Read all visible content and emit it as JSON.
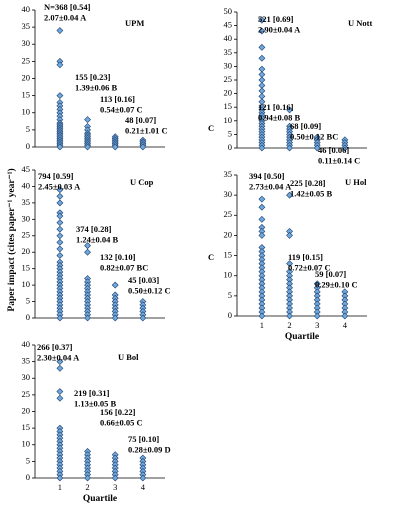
{
  "y_axis_label": "Paper impact (cites paper⁻¹ year⁻¹)",
  "chart_data": [
    {
      "type": "scatter",
      "title": "UPM",
      "x": [
        1,
        2,
        3,
        4
      ],
      "xlim": [
        0.1,
        4.8
      ],
      "ylim": [
        0,
        40
      ],
      "yticks": [
        0,
        5,
        10,
        15,
        20,
        25,
        30,
        35,
        40
      ],
      "values": [
        [
          34,
          25,
          24,
          15,
          13,
          12,
          11,
          10,
          9,
          8,
          7,
          6.5,
          6,
          5.5,
          5,
          4.5,
          4,
          3.5,
          3,
          2.5,
          2,
          1.5,
          1,
          0.5,
          0
        ],
        [
          8,
          6,
          5,
          4,
          3.5,
          3,
          2.5,
          2,
          1.5,
          1,
          0.5,
          0
        ],
        [
          3,
          2.5,
          2,
          1.5,
          1,
          0.5,
          0
        ],
        [
          2,
          1.5,
          1,
          0.5,
          0
        ]
      ],
      "annotations": [
        [
          "N=368 [0.54]",
          "2.07±0.04 A"
        ],
        [
          "155 [0.23]",
          "1.39±0.06 B"
        ],
        [
          "113 [0.16]",
          "0.54±0.07 C"
        ],
        [
          "48 [0.07]",
          "0.21±1.01 C"
        ]
      ]
    },
    {
      "type": "scatter",
      "title": "U Nott",
      "x": [
        1,
        2,
        3,
        4
      ],
      "xlim": [
        0.1,
        4.8
      ],
      "ylim": [
        0,
        50
      ],
      "yticks": [
        0,
        5,
        10,
        15,
        20,
        25,
        30,
        35,
        40,
        45,
        50
      ],
      "side_label": "C",
      "values": [
        [
          47,
          43,
          37,
          33,
          29,
          27,
          25,
          23,
          21,
          19,
          17,
          15,
          14,
          13,
          12,
          11,
          10,
          9,
          8,
          7,
          6,
          5,
          4,
          3,
          2,
          1,
          0
        ],
        [
          14,
          8,
          7,
          6,
          5,
          4,
          3,
          2,
          1,
          0
        ],
        [
          4,
          3,
          2,
          1,
          0
        ],
        [
          3,
          2,
          1,
          0
        ]
      ],
      "annotations": [
        [
          "521 [0.69]",
          "2.90±0.04 A"
        ],
        [
          "121 [0.16]",
          "0.94±0.08 B"
        ],
        [
          "68 [0.09]",
          "0.50±0.12 BC"
        ],
        [
          "46 [0.06]",
          "0.11±0.14 C"
        ]
      ]
    },
    {
      "type": "scatter",
      "title": "U Cop",
      "x": [
        1,
        2,
        3,
        4
      ],
      "xlim": [
        0.1,
        4.8
      ],
      "ylim": [
        0,
        45
      ],
      "yticks": [
        0,
        5,
        10,
        15,
        20,
        25,
        30,
        35,
        40,
        45
      ],
      "values": [
        [
          39,
          37,
          35,
          32,
          31,
          29,
          27,
          25,
          23,
          21,
          19,
          17,
          16,
          15,
          14,
          13,
          12,
          11,
          10,
          9,
          8,
          7,
          6,
          5,
          4,
          3,
          2,
          1,
          0
        ],
        [
          22,
          20,
          12,
          11,
          10,
          9,
          8,
          7,
          6,
          5,
          4,
          3,
          2,
          1,
          0
        ],
        [
          10,
          7,
          6,
          5,
          4,
          3,
          2,
          1,
          0
        ],
        [
          5,
          4,
          3,
          2,
          1,
          0
        ]
      ],
      "annotations": [
        [
          "794 [0.59]",
          "2.45±0.03 A"
        ],
        [
          "374 [0.28]",
          "1.24±0.04 B"
        ],
        [
          "132 [0.10]",
          "0.82±0.07 BC"
        ],
        [
          "45 [0.03]",
          "0.50±0.12 C"
        ]
      ]
    },
    {
      "type": "scatter",
      "title": "U Hol",
      "x": [
        1,
        2,
        3,
        4
      ],
      "xlim": [
        0.1,
        4.8
      ],
      "ylim": [
        0,
        35
      ],
      "yticks": [
        0,
        5,
        10,
        15,
        20,
        25,
        30,
        35
      ],
      "xticks": [
        1,
        2,
        3,
        4
      ],
      "xlabel": "Quartile",
      "side_label": "C",
      "values": [
        [
          29,
          27,
          24,
          22,
          21,
          20,
          17,
          16,
          15,
          14,
          13,
          12,
          11,
          10,
          9,
          8,
          7,
          6,
          5,
          4,
          3,
          2,
          1,
          0
        ],
        [
          30,
          21,
          20,
          13,
          11,
          10,
          9,
          8,
          7,
          6,
          5,
          4,
          3,
          2,
          1,
          0
        ],
        [
          8,
          7,
          6,
          5,
          4,
          3,
          2,
          1,
          0
        ],
        [
          6,
          5,
          4,
          3,
          2,
          1,
          0
        ]
      ],
      "annotations": [
        [
          "394 [0.50]",
          "2.73±0.04 A"
        ],
        [
          "225 [0.28]",
          "1.42±0.05 B"
        ],
        [
          "119 [0.15]",
          "0.72±0.07 C"
        ],
        [
          "59 [0.07]",
          "0.29±0.10 C"
        ]
      ]
    },
    {
      "type": "scatter",
      "title": "U Bol",
      "x": [
        1,
        2,
        3,
        4
      ],
      "xlim": [
        0.1,
        4.8
      ],
      "ylim": [
        0,
        40
      ],
      "yticks": [
        0,
        5,
        10,
        15,
        20,
        25,
        30,
        35,
        40
      ],
      "xticks": [
        1,
        2,
        3,
        4
      ],
      "xlabel": "Quartile",
      "values": [
        [
          35,
          33,
          26,
          24,
          15,
          14,
          13,
          12,
          11,
          10,
          9,
          8,
          7,
          6,
          5,
          4,
          3,
          2,
          1,
          0
        ],
        [
          8,
          7,
          6,
          5,
          4,
          3,
          2,
          1,
          0
        ],
        [
          7,
          6,
          5,
          4,
          3,
          2,
          1,
          0
        ],
        [
          6,
          5,
          4,
          3,
          2,
          1,
          0
        ]
      ],
      "annotations": [
        [
          "266 [0.37]",
          "2.30±0.04 A"
        ],
        [
          "219 [0.31]",
          "1.13±0.05 B"
        ],
        [
          "156 [0.22]",
          "0.66±0.05 C"
        ],
        [
          "75 [0.10]",
          "0.28±0.09 D"
        ]
      ]
    }
  ]
}
